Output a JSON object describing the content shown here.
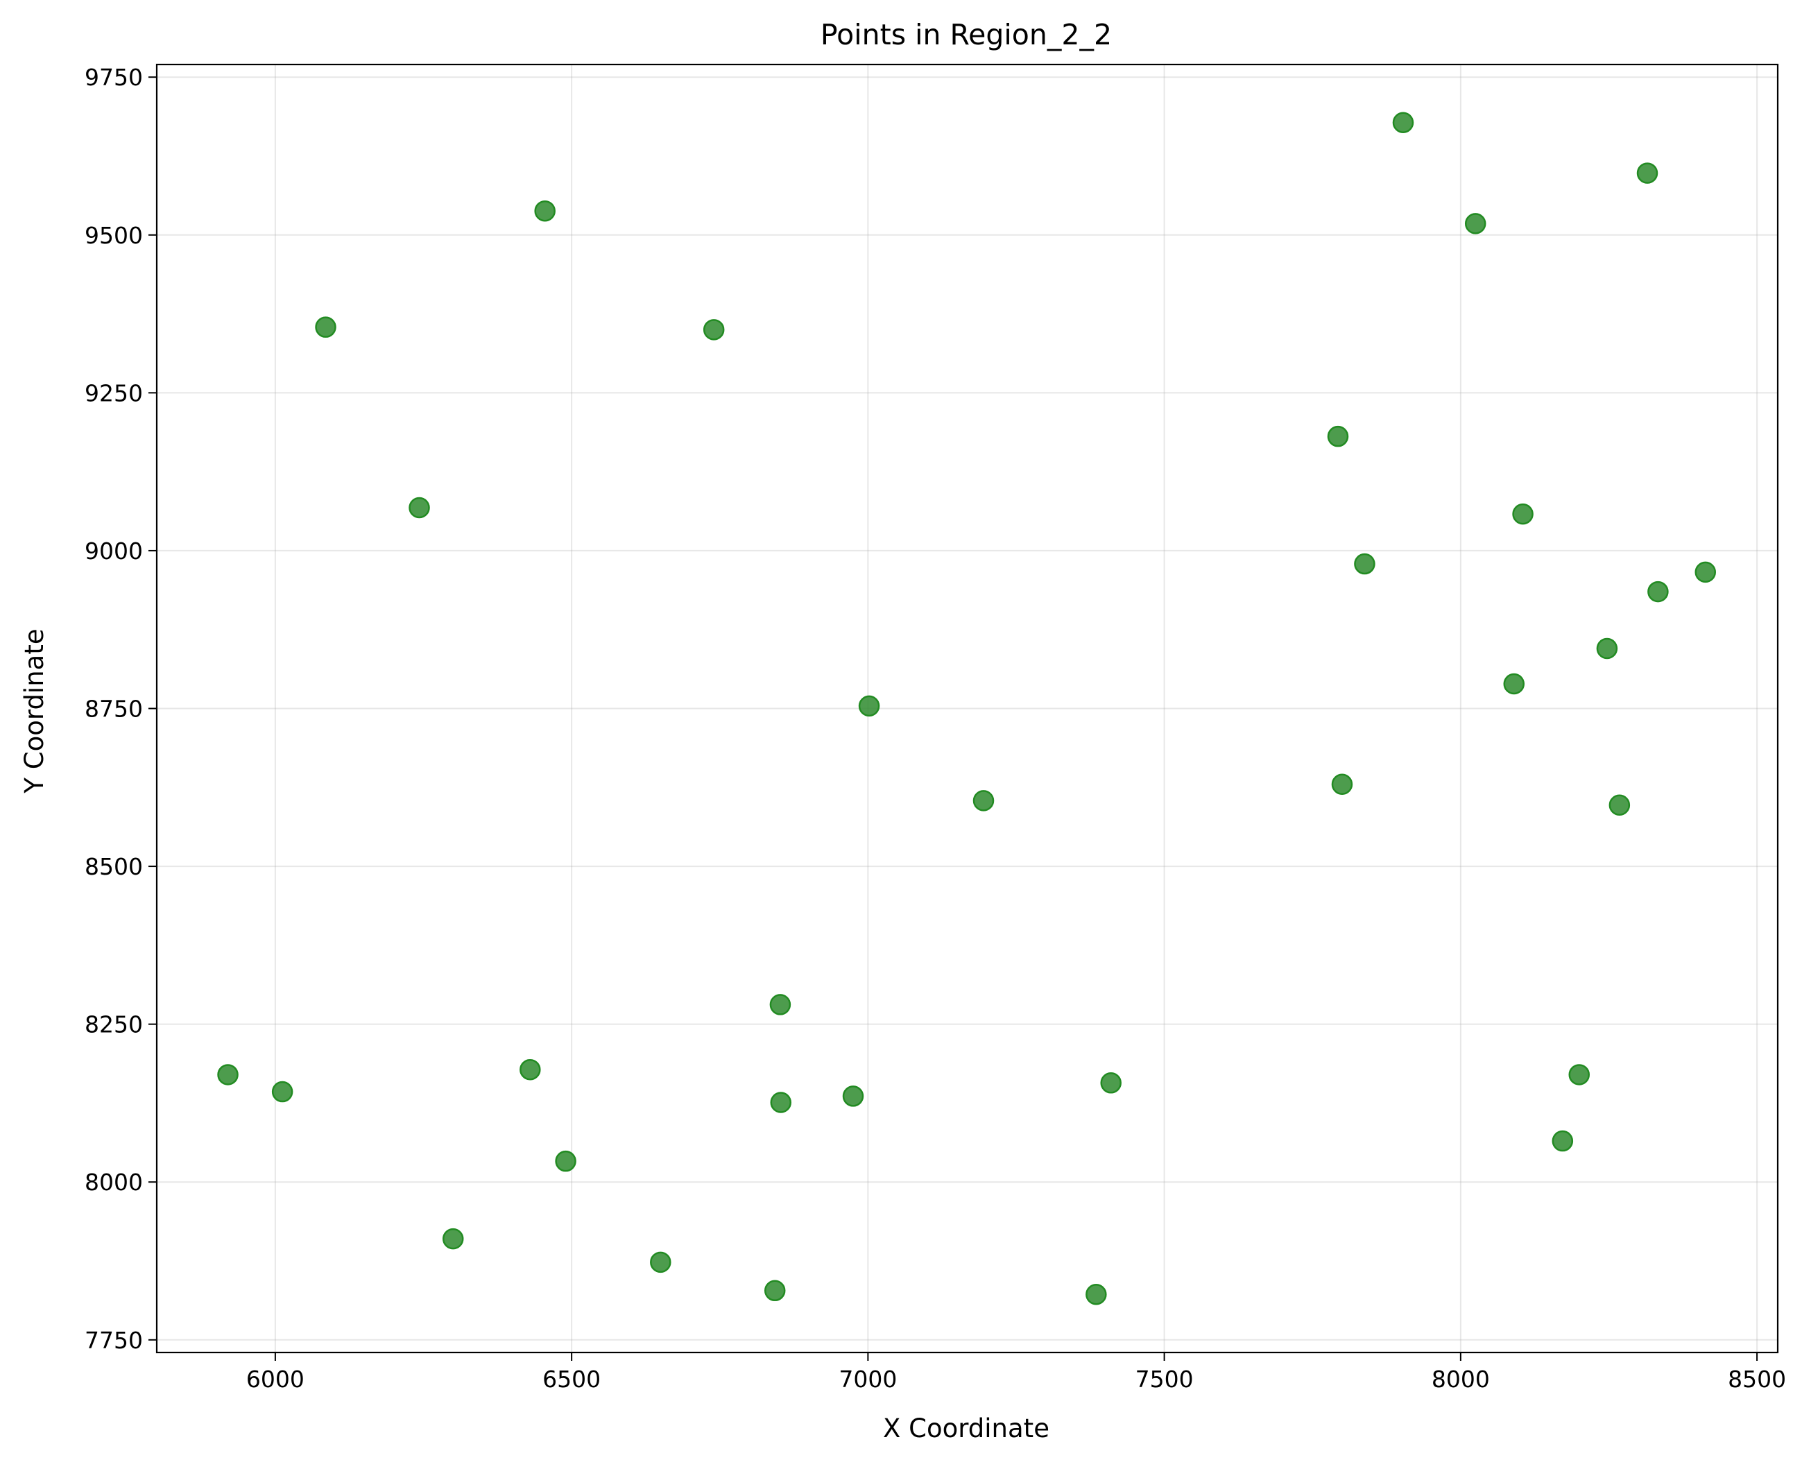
{
  "chart_data": {
    "type": "scatter",
    "title": "Points in Region_2_2",
    "xlabel": "X Coordinate",
    "ylabel": "Y Coordinate",
    "xlim": [
      5800,
      8535
    ],
    "ylim": [
      7730,
      9770
    ],
    "xticks": [
      6000,
      6500,
      7000,
      7500,
      8000,
      8500
    ],
    "yticks": [
      7750,
      8000,
      8250,
      8500,
      8750,
      9000,
      9250,
      9500,
      9750
    ],
    "grid": true,
    "marker_color": "#2e8b2e",
    "marker_edge_color": "#228B22",
    "points": [
      {
        "x": 5920,
        "y": 8170
      },
      {
        "x": 6012,
        "y": 8143
      },
      {
        "x": 6085,
        "y": 9354
      },
      {
        "x": 6243,
        "y": 9068
      },
      {
        "x": 6300,
        "y": 7910
      },
      {
        "x": 6430,
        "y": 8178
      },
      {
        "x": 6455,
        "y": 9538
      },
      {
        "x": 6490,
        "y": 8033
      },
      {
        "x": 6650,
        "y": 7873
      },
      {
        "x": 6740,
        "y": 9350
      },
      {
        "x": 6843,
        "y": 7828
      },
      {
        "x": 6852,
        "y": 8281
      },
      {
        "x": 6853,
        "y": 8126
      },
      {
        "x": 6975,
        "y": 8136
      },
      {
        "x": 7002,
        "y": 8754
      },
      {
        "x": 7195,
        "y": 8604
      },
      {
        "x": 7385,
        "y": 7822
      },
      {
        "x": 7410,
        "y": 8157
      },
      {
        "x": 7793,
        "y": 9181
      },
      {
        "x": 7800,
        "y": 8630
      },
      {
        "x": 7838,
        "y": 8979
      },
      {
        "x": 7903,
        "y": 9678
      },
      {
        "x": 8025,
        "y": 9518
      },
      {
        "x": 8090,
        "y": 8789
      },
      {
        "x": 8105,
        "y": 9058
      },
      {
        "x": 8172,
        "y": 8065
      },
      {
        "x": 8200,
        "y": 8170
      },
      {
        "x": 8247,
        "y": 8845
      },
      {
        "x": 8268,
        "y": 8597
      },
      {
        "x": 8315,
        "y": 9598
      },
      {
        "x": 8333,
        "y": 8935
      },
      {
        "x": 8413,
        "y": 8966
      }
    ]
  }
}
